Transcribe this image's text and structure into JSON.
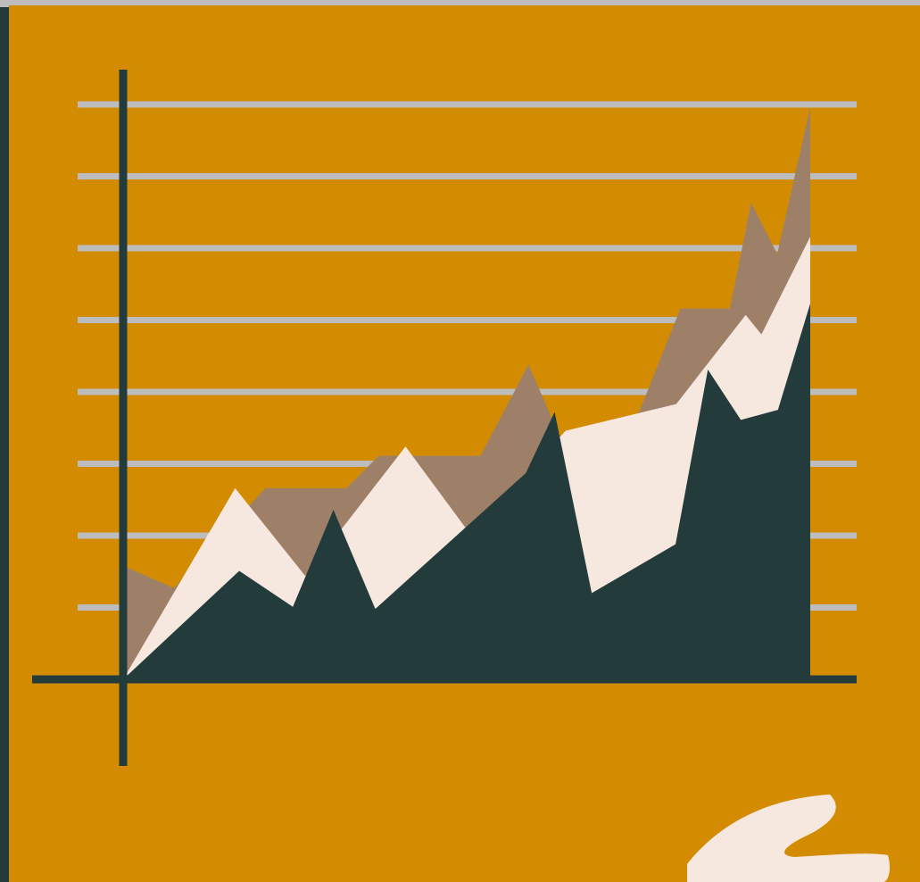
{
  "colors": {
    "background": "#d38c02",
    "frame": "#233b3b",
    "gridline": "#bdbdbd",
    "axis": "#233b3b",
    "brushstroke": "#f6e8df"
  },
  "chart_data": {
    "type": "area",
    "title": "",
    "xlabel": "",
    "ylabel": "",
    "grid": true,
    "legend": "none",
    "gridline_count": 8,
    "xlim": [
      0,
      100
    ],
    "ylim": [
      0,
      80
    ],
    "series": [
      {
        "color": "#9e8069",
        "points": [
          [
            0,
            15.8
          ],
          [
            7.4,
            12.7
          ],
          [
            20.7,
            26.6
          ],
          [
            32.5,
            26.6
          ],
          [
            37.2,
            31.1
          ],
          [
            52,
            31.1
          ],
          [
            59,
            43.8
          ],
          [
            64.8,
            31.1
          ],
          [
            75.1,
            37.2
          ],
          [
            81.1,
            51.6
          ],
          [
            88.3,
            51.6
          ],
          [
            91.4,
            66.3
          ],
          [
            95.2,
            59.2
          ],
          [
            100,
            79.6
          ]
        ]
      },
      {
        "color": "#f6e8df",
        "points": [
          [
            0,
            0
          ],
          [
            16.3,
            26.6
          ],
          [
            26.5,
            14.4
          ],
          [
            41.1,
            32.4
          ],
          [
            50.6,
            20.1
          ],
          [
            64.4,
            34.6
          ],
          [
            80.5,
            38.3
          ],
          [
            84.4,
            43.1
          ],
          [
            90.6,
            50.7
          ],
          [
            92.9,
            48.0
          ],
          [
            100,
            61.6
          ]
        ]
      },
      {
        "color": "#233b3b",
        "points": [
          [
            0,
            0
          ],
          [
            16.9,
            15.1
          ],
          [
            24.7,
            10.1
          ],
          [
            30.6,
            23.6
          ],
          [
            36.7,
            9.8
          ],
          [
            58.6,
            28.7
          ],
          [
            62.8,
            37.2
          ],
          [
            68.2,
            12.0
          ],
          [
            80.4,
            18.8
          ],
          [
            85.1,
            43.1
          ],
          [
            89.9,
            36.1
          ],
          [
            95.3,
            37.5
          ],
          [
            100,
            52.3
          ]
        ]
      }
    ]
  }
}
